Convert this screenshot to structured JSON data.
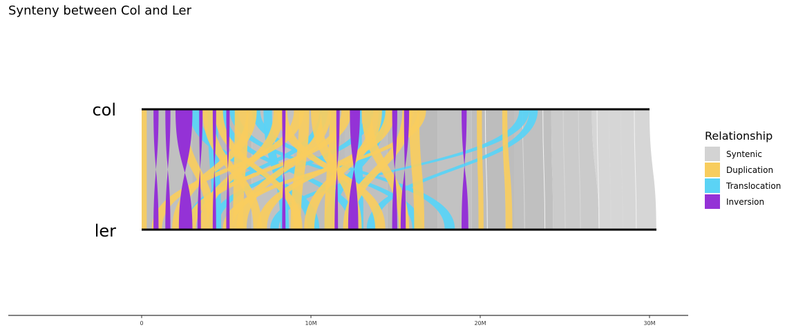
{
  "chart_data": {
    "type": "synteny",
    "title": "Synteny between Col and Ler",
    "genomes": [
      {
        "name": "col",
        "length": 30.0
      },
      {
        "name": "ler",
        "length": 30.4
      }
    ],
    "x_axis": {
      "unit": "Mb",
      "ticks": [
        {
          "value": 0,
          "label": "0"
        },
        {
          "value": 10,
          "label": "10M"
        },
        {
          "value": 20,
          "label": "20M"
        },
        {
          "value": 30,
          "label": "30M"
        }
      ]
    },
    "legend": {
      "title": "Relationship",
      "placement": "right",
      "items": [
        {
          "label": "Syntenic",
          "color": "#d3d3d3"
        },
        {
          "label": "Duplication",
          "color": "#f8cd5e"
        },
        {
          "label": "Translocation",
          "color": "#5bd3f5"
        },
        {
          "label": "Inversion",
          "color": "#9432d6"
        }
      ]
    },
    "syntenic_blocks": [
      [
        0.0,
        1.5,
        0.0,
        1.5
      ],
      [
        1.5,
        3.0,
        1.5,
        3.0
      ],
      [
        3.0,
        6.5,
        3.0,
        6.5
      ],
      [
        6.5,
        9.0,
        6.5,
        9.0
      ],
      [
        9.0,
        12.0,
        9.0,
        12.0
      ],
      [
        12.0,
        14.5,
        12.0,
        14.5
      ],
      [
        14.5,
        17.5,
        14.5,
        17.5
      ],
      [
        17.5,
        19.5,
        17.5,
        19.5
      ],
      [
        19.5,
        22.0,
        19.5,
        22.0
      ],
      [
        22.0,
        24.2,
        22.0,
        24.3
      ],
      [
        24.2,
        26.6,
        24.3,
        27.0
      ],
      [
        26.6,
        30.0,
        27.0,
        30.4
      ]
    ],
    "syntenic_lines": [
      20.3,
      21.4,
      22.5,
      23.7,
      24.9,
      25.8,
      26.9,
      27.6,
      28.3,
      29.1
    ],
    "inversions": [
      [
        0.7,
        1.0,
        0.7,
        1.0
      ],
      [
        1.4,
        1.7,
        1.4,
        1.7
      ],
      [
        2.0,
        3.0,
        2.2,
        3.0
      ],
      [
        3.4,
        3.6,
        3.3,
        3.5
      ],
      [
        4.2,
        4.4,
        4.2,
        4.4
      ],
      [
        5.0,
        5.2,
        5.0,
        5.2
      ],
      [
        8.3,
        8.5,
        8.3,
        8.5
      ],
      [
        11.5,
        11.7,
        11.4,
        11.6
      ],
      [
        12.3,
        12.9,
        12.2,
        12.8
      ],
      [
        14.8,
        15.1,
        14.8,
        15.1
      ],
      [
        15.5,
        15.8,
        15.3,
        15.6
      ],
      [
        18.9,
        19.2,
        18.9,
        19.3
      ]
    ],
    "duplications": [
      [
        0.0,
        0.3,
        0.0,
        0.3
      ],
      [
        2.0,
        2.6,
        3.9,
        4.4
      ],
      [
        3.6,
        4.2,
        6.6,
        7.1
      ],
      [
        4.3,
        4.8,
        9.0,
        9.5
      ],
      [
        5.5,
        6.3,
        5.4,
        6.0
      ],
      [
        6.2,
        6.8,
        1.8,
        2.3
      ],
      [
        7.8,
        8.4,
        3.4,
        3.9
      ],
      [
        8.0,
        8.6,
        13.8,
        14.4
      ],
      [
        9.0,
        9.6,
        0.6,
        1.2
      ],
      [
        9.3,
        9.9,
        8.8,
        9.4
      ],
      [
        10.0,
        10.6,
        12.4,
        13.0
      ],
      [
        10.6,
        11.2,
        5.6,
        6.2
      ],
      [
        11.1,
        11.6,
        10.8,
        11.4
      ],
      [
        11.8,
        12.4,
        2.6,
        3.2
      ],
      [
        13.0,
        13.6,
        15.2,
        15.8
      ],
      [
        13.6,
        14.2,
        9.6,
        10.2
      ],
      [
        14.4,
        15.0,
        6.8,
        7.4
      ],
      [
        15.4,
        16.0,
        11.9,
        12.5
      ],
      [
        15.8,
        16.4,
        16.1,
        16.7
      ],
      [
        16.3,
        16.8,
        4.8,
        5.4
      ],
      [
        19.8,
        20.1,
        19.9,
        20.2
      ],
      [
        21.3,
        21.6,
        21.5,
        21.9
      ]
    ],
    "translocations": [
      [
        2.8,
        3.4,
        9.8,
        10.5
      ],
      [
        3.9,
        4.5,
        4.2,
        4.7
      ],
      [
        4.5,
        5.0,
        12.3,
        12.9
      ],
      [
        5.2,
        5.7,
        16.0,
        16.6
      ],
      [
        6.5,
        7.0,
        17.9,
        18.5
      ],
      [
        7.2,
        7.7,
        8.2,
        8.7
      ],
      [
        10.5,
        11.0,
        2.6,
        3.1
      ],
      [
        12.5,
        13.0,
        12.5,
        13.1
      ],
      [
        13.2,
        13.7,
        4.0,
        4.5
      ],
      [
        14.0,
        14.5,
        10.8,
        11.3
      ],
      [
        22.3,
        22.9,
        7.6,
        8.1
      ],
      [
        22.9,
        23.4,
        13.3,
        13.8
      ]
    ]
  }
}
